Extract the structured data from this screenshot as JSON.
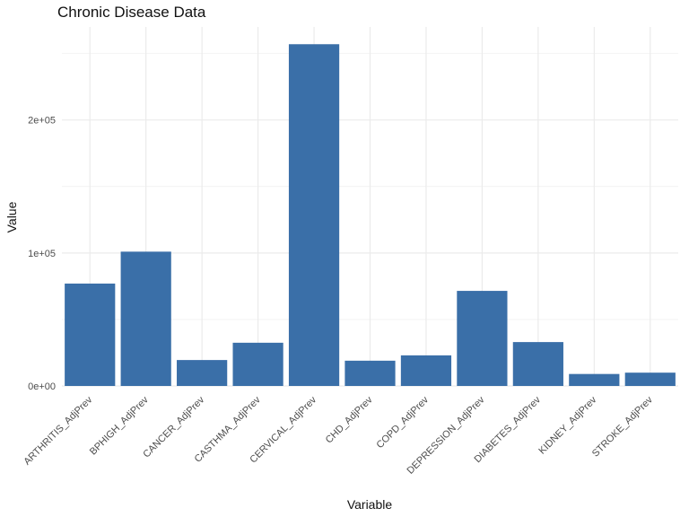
{
  "chart_data": {
    "type": "bar",
    "title": "Chronic Disease Data",
    "xlabel": "Variable",
    "ylabel": "Value",
    "categories": [
      "ARTHRITIS_AdjPrev",
      "BPHIGH_AdjPrev",
      "CANCER_AdjPrev",
      "CASTHMA_AdjPrev",
      "CERVICAL_AdjPrev",
      "CHD_AdjPrev",
      "COPD_AdjPrev",
      "DEPRESSION_AdjPrev",
      "DIABETES_AdjPrev",
      "KIDNEY_AdjPrev",
      "STROKE_AdjPrev"
    ],
    "values": [
      77000,
      101000,
      19500,
      32500,
      257000,
      19000,
      23000,
      71500,
      33000,
      9000,
      10000
    ],
    "ylim": [
      0,
      270000
    ],
    "yticks": [
      {
        "value": 0,
        "label": "0e+00"
      },
      {
        "value": 100000,
        "label": "1e+05"
      },
      {
        "value": 200000,
        "label": "2e+05"
      }
    ],
    "grid": true,
    "bar_color": "#3a6fa8",
    "grid_color": "#ebebeb"
  }
}
